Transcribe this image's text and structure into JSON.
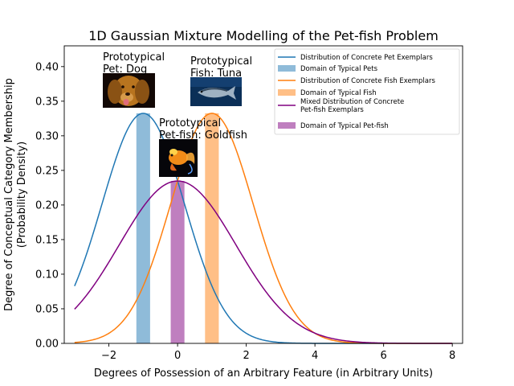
{
  "chart_data": {
    "type": "line",
    "title": "1D Gaussian Mixture Modelling of the Pet-fish Problem",
    "xlabel": "Degrees of Possession of an Arbitrary Feature (in Arbitrary Units)",
    "ylabel_line1": "Degree of Conceptual Category Membership",
    "ylabel_line2": "(Probability Density)",
    "xlim": [
      -3.3,
      8.3
    ],
    "ylim": [
      0,
      0.43
    ],
    "x_ticks": [
      -2,
      0,
      2,
      4,
      6,
      8
    ],
    "x_tick_labels": [
      "−2",
      "0",
      "2",
      "4",
      "6",
      "8"
    ],
    "y_ticks": [
      0,
      0.05,
      0.1,
      0.15,
      0.2,
      0.25,
      0.3,
      0.35,
      0.4
    ],
    "y_tick_labels": [
      "0.00",
      "0.05",
      "0.10",
      "0.15",
      "0.20",
      "0.25",
      "0.30",
      "0.35",
      "0.40"
    ],
    "x_range": [
      -3,
      8
    ],
    "series": [
      {
        "name": "Distribution of Concrete Pet Exemplars",
        "mean": -1,
        "sd": 1.2,
        "color": "#1f77b4"
      },
      {
        "name": "Distribution of Concrete Fish Exemplars",
        "mean": 1,
        "sd": 1.2,
        "color": "#ff7f0e"
      },
      {
        "name": "Mixed Distribution of Concrete Pet-fish Exemplars",
        "mean": 0,
        "sd": 1.7,
        "color": "#800080"
      }
    ],
    "bands": [
      {
        "name": "Domain of Typical Pets",
        "x0": -1.2,
        "x1": -0.8,
        "height": 0.3325,
        "color": "#1f77b4"
      },
      {
        "name": "Domain of Typical Fish",
        "x0": 0.8,
        "x1": 1.2,
        "height": 0.3325,
        "color": "#ff7f0e"
      },
      {
        "name": "Domain of Typical Pet-fish",
        "x0": -0.2,
        "x1": 0.2,
        "height": 0.2347,
        "color": "#800080"
      }
    ],
    "legend": {
      "placement": "top-right",
      "entries": [
        {
          "label": "Distribution of Concrete Pet Exemplars",
          "kind": "line",
          "color": "#1f77b4"
        },
        {
          "label": "Domain of Typical Pets",
          "kind": "patch",
          "color": "#1f77b4"
        },
        {
          "label": "Distribution of Concrete Fish Exemplars",
          "kind": "line",
          "color": "#ff7f0e"
        },
        {
          "label": "Domain of Typical Fish",
          "kind": "patch",
          "color": "#ff7f0e"
        },
        {
          "label": "Mixed Distribution of Concrete\nPet-fish Exemplars",
          "kind": "line",
          "color": "#800080"
        },
        {
          "label": "Domain of Typical Pet-fish",
          "kind": "patch",
          "color": "#800080"
        }
      ]
    },
    "annotations": [
      {
        "text": "Prototypical\nPet: Dog",
        "image": "dog-photo"
      },
      {
        "text": "Prototypical\nFish: Tuna",
        "image": "tuna-photo"
      },
      {
        "text": "Prototypical\nPet-fish: Goldfish",
        "image": "goldfish-photo"
      }
    ]
  }
}
